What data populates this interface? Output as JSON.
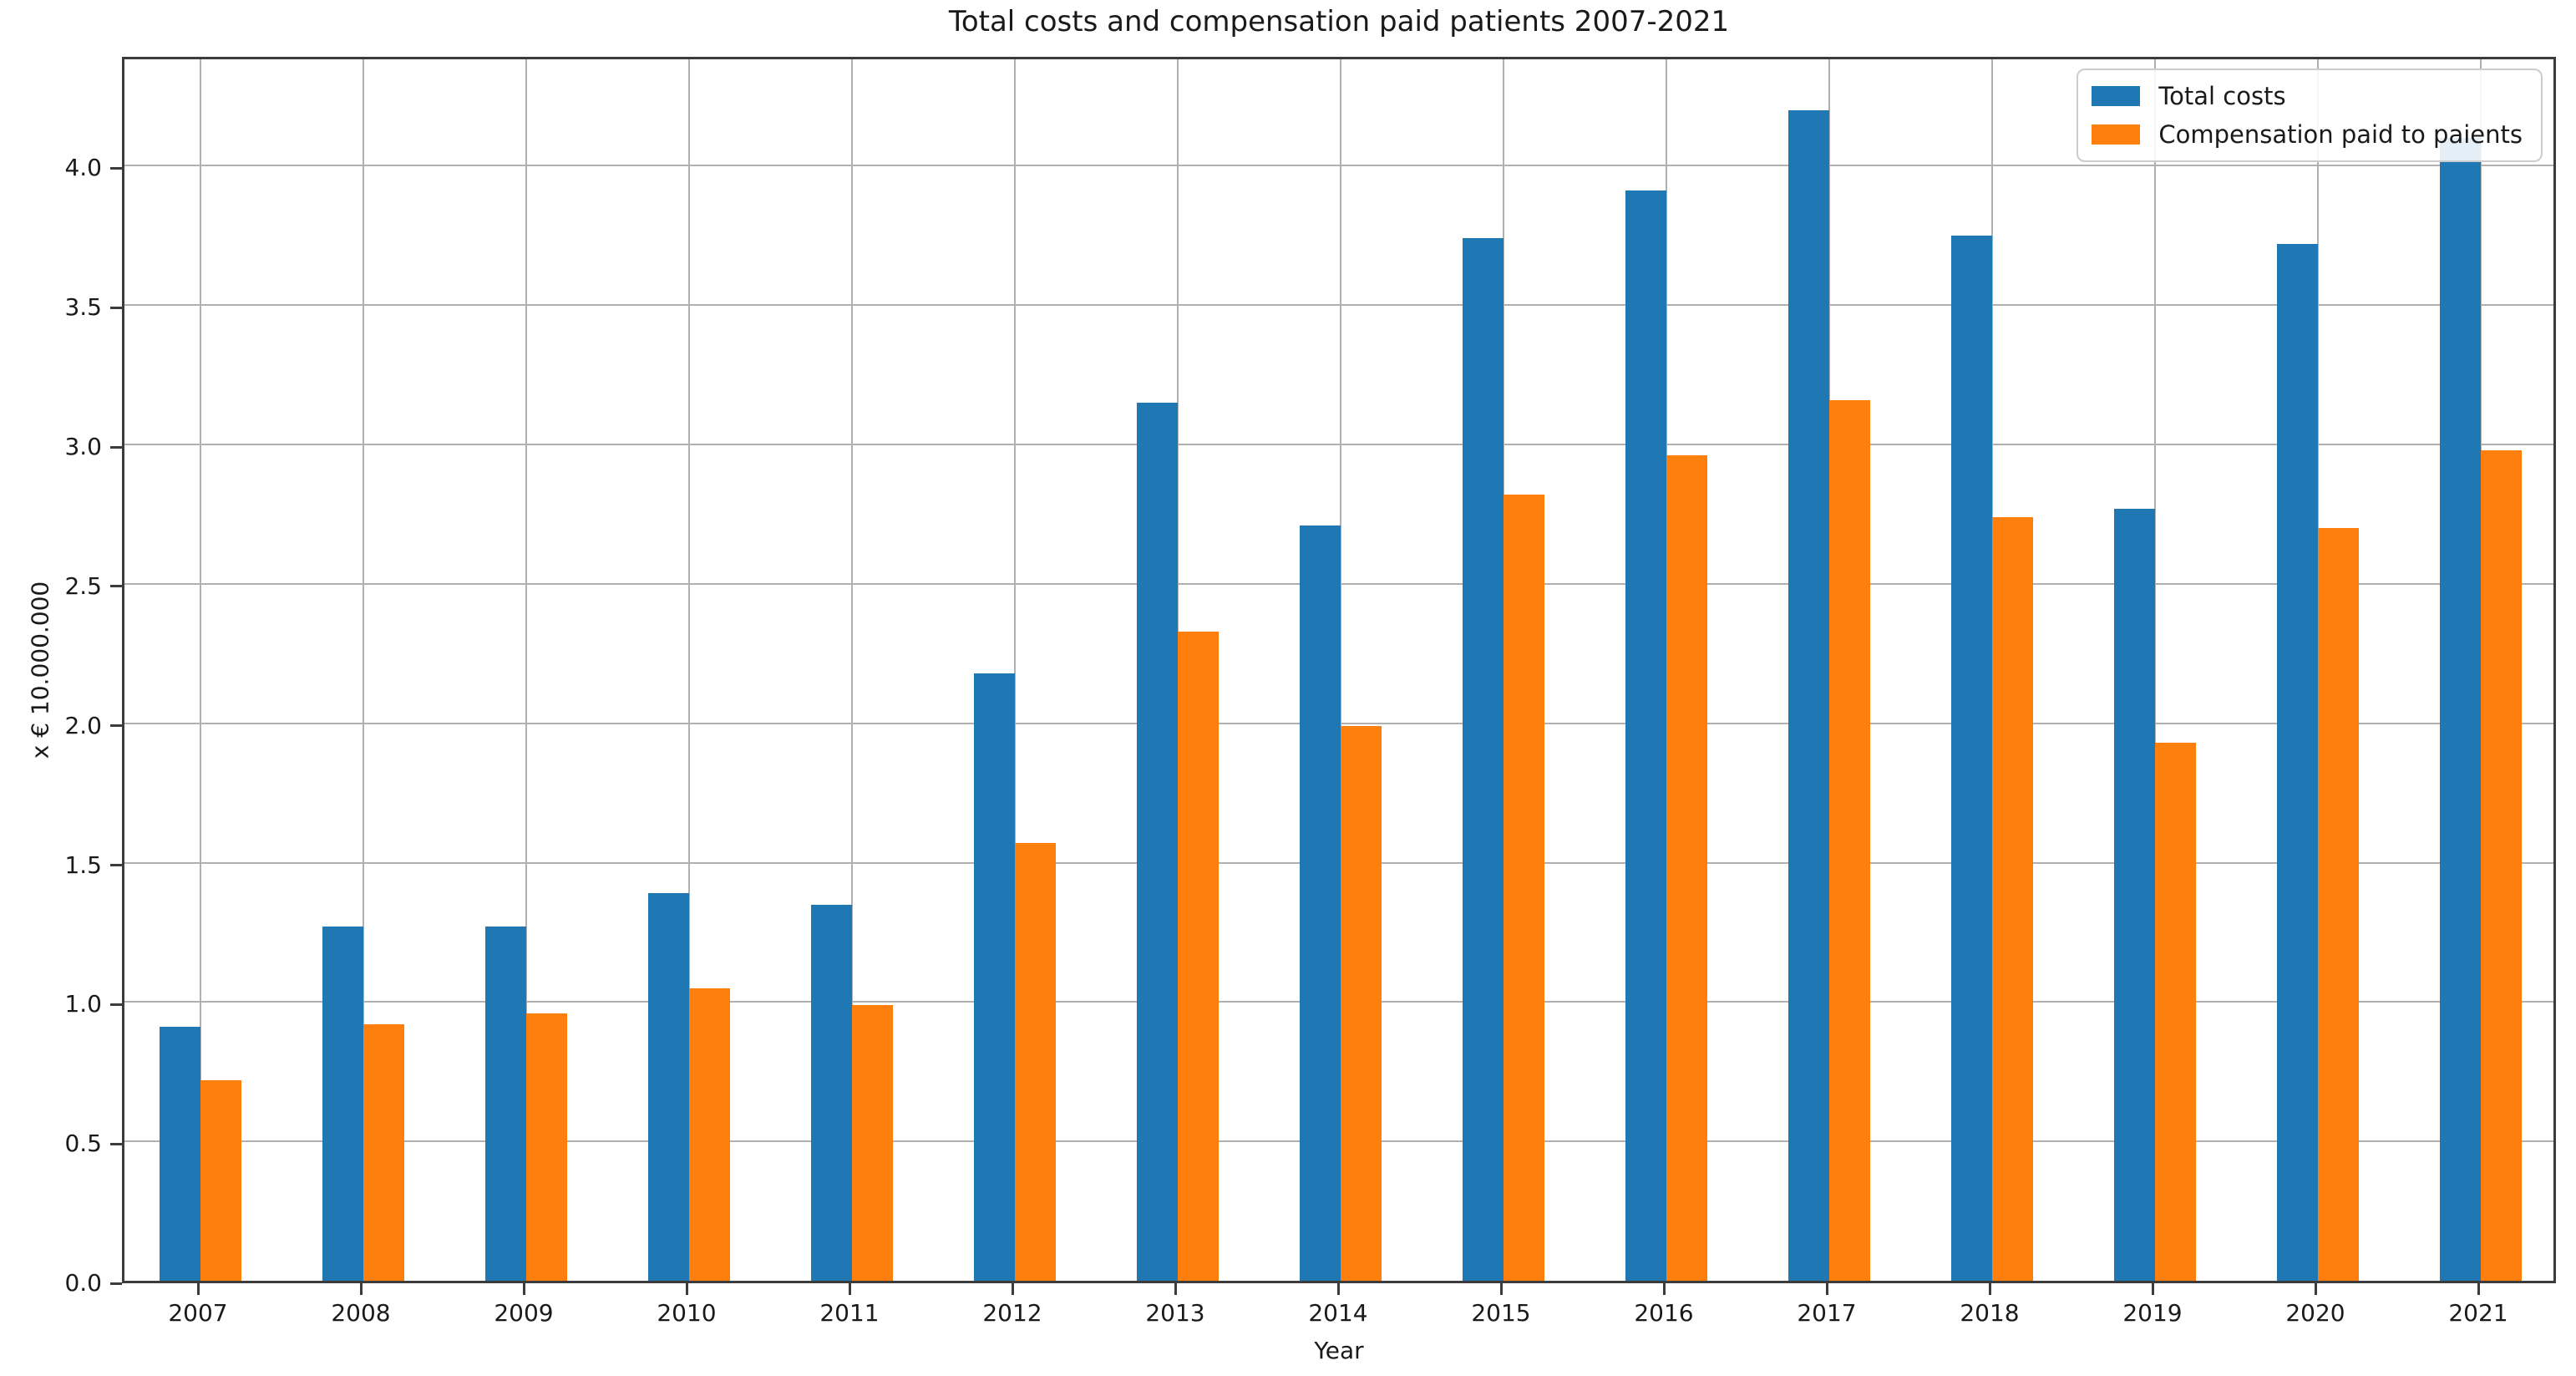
{
  "chart_data": {
    "type": "bar",
    "title": "Total costs and compensation paid patients 2007-2021",
    "xlabel": "Year",
    "ylabel": "x € 10.000.000",
    "categories": [
      "2007",
      "2008",
      "2009",
      "2010",
      "2011",
      "2012",
      "2013",
      "2014",
      "2015",
      "2016",
      "2017",
      "2018",
      "2019",
      "2020",
      "2021"
    ],
    "series": [
      {
        "name": "Total costs",
        "color": "#1f77b4",
        "values": [
          0.91,
          1.27,
          1.27,
          1.39,
          1.35,
          2.18,
          3.15,
          2.71,
          3.74,
          3.91,
          4.2,
          3.75,
          2.77,
          3.72,
          4.1
        ]
      },
      {
        "name": "Compensation paid to paients",
        "color": "#ff7f0e",
        "values": [
          0.72,
          0.92,
          0.96,
          1.05,
          0.99,
          1.57,
          2.33,
          1.99,
          2.82,
          2.96,
          3.16,
          2.74,
          1.93,
          2.7,
          2.98
        ]
      }
    ],
    "ylim": [
      0,
      4.4
    ],
    "yticks": [
      0,
      0.5,
      1,
      1.5,
      2,
      2.5,
      3,
      3.5,
      4
    ],
    "ytick_labels": [
      "0.0",
      "0.5",
      "1.0",
      "1.5",
      "2.0",
      "2.5",
      "3.0",
      "3.5",
      "4.0"
    ],
    "grid": true,
    "legend_position": "upper right",
    "colors": {
      "background": "#ffffff",
      "grid": "#b0b0b0",
      "spine": "#3c3c3c",
      "text": "#1a1a1a"
    }
  }
}
